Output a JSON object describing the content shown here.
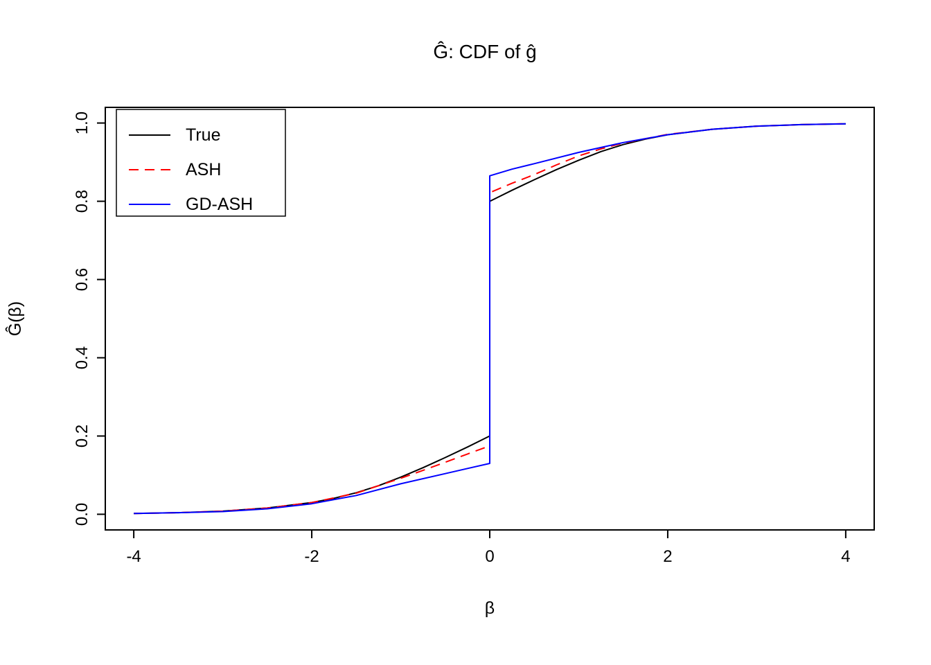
{
  "chart_data": {
    "type": "line",
    "title": "Ĝ: CDF of ĝ",
    "xlabel": "β",
    "ylabel": "Ĝ(β)",
    "xlim": [
      -4,
      4
    ],
    "ylim": [
      0,
      1
    ],
    "grid": false,
    "background": "#FFFFFF",
    "x_ticks": {
      "values": [
        -4,
        -2,
        0,
        2,
        4
      ],
      "labels": [
        "-4",
        "-2",
        "0",
        "2",
        "4"
      ]
    },
    "y_ticks": {
      "values": [
        0,
        0.2,
        0.4,
        0.6,
        0.8,
        1.0
      ],
      "labels": [
        "0.0",
        "0.2",
        "0.4",
        "0.6",
        "0.8",
        "1.0"
      ]
    },
    "legend": {
      "position": "top-left",
      "entries": [
        "True",
        "ASH",
        "GD-ASH"
      ]
    },
    "series": [
      {
        "name": "True",
        "color": "#000000",
        "dash": false,
        "x": [
          -4,
          -3.5,
          -3,
          -2.5,
          -2,
          -1.75,
          -1.5,
          -1.25,
          -1,
          -0.75,
          -0.5,
          -0.25,
          0,
          0,
          0.25,
          0.5,
          0.75,
          1,
          1.25,
          1.5,
          1.75,
          2,
          2.5,
          3,
          3.5,
          4
        ],
        "y": [
          0.002,
          0.004,
          0.008,
          0.016,
          0.03,
          0.041,
          0.055,
          0.073,
          0.095,
          0.119,
          0.145,
          0.172,
          0.2,
          0.8,
          0.828,
          0.855,
          0.881,
          0.905,
          0.927,
          0.945,
          0.959,
          0.97,
          0.984,
          0.992,
          0.996,
          0.998
        ]
      },
      {
        "name": "ASH",
        "color": "#FF0000",
        "dash": true,
        "x": [
          -4,
          -3.5,
          -3,
          -2.5,
          -2,
          -1.5,
          -1,
          -0.75,
          -0.5,
          -0.25,
          0,
          0,
          0.25,
          0.5,
          0.75,
          1,
          1.25,
          1.5,
          2,
          2.5,
          3,
          3.5,
          4
        ],
        "y": [
          0.002,
          0.004,
          0.008,
          0.016,
          0.03,
          0.054,
          0.092,
          0.112,
          0.133,
          0.154,
          0.175,
          0.822,
          0.846,
          0.868,
          0.893,
          0.916,
          0.934,
          0.949,
          0.971,
          0.984,
          0.992,
          0.996,
          0.998
        ]
      },
      {
        "name": "GD-ASH",
        "color": "#0000FF",
        "dash": false,
        "x": [
          -4,
          -3.5,
          -3,
          -2.5,
          -2,
          -1.5,
          -1,
          -0.5,
          -0.25,
          0,
          0,
          0.25,
          0.5,
          1,
          1.5,
          2,
          2.5,
          3,
          3.5,
          4
        ],
        "y": [
          0.002,
          0.004,
          0.007,
          0.014,
          0.027,
          0.048,
          0.078,
          0.104,
          0.117,
          0.13,
          0.865,
          0.882,
          0.896,
          0.925,
          0.95,
          0.97,
          0.984,
          0.992,
          0.996,
          0.998
        ]
      }
    ]
  }
}
